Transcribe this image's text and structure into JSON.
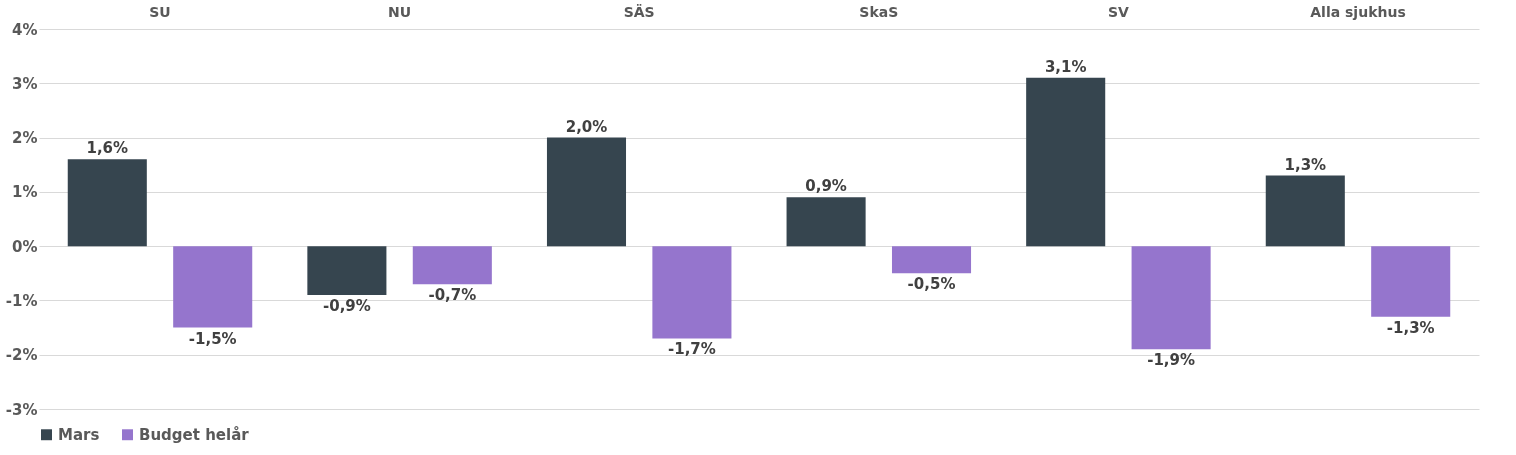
{
  "chart_data": {
    "type": "bar",
    "categories": [
      "SU",
      "NU",
      "SÄS",
      "SkaS",
      "SV",
      "Alla sjukhus"
    ],
    "series": [
      {
        "name": "Mars",
        "color": "#36454f",
        "values": [
          1.6,
          -0.9,
          2.0,
          0.9,
          3.1,
          1.3
        ],
        "value_labels": [
          "1,6%",
          "-0,9%",
          "2,0%",
          "0,9%",
          "3,1%",
          "1,3%"
        ]
      },
      {
        "name": "Budget helår",
        "color": "#9575cd",
        "values": [
          -1.5,
          -0.7,
          -1.7,
          -0.5,
          -1.9,
          -1.3
        ],
        "value_labels": [
          "-1,5%",
          "-0,7%",
          "-1,7%",
          "-0,5%",
          "-1,9%",
          "-1,3%"
        ]
      }
    ],
    "ylim": [
      -3,
      4
    ],
    "yticks": [
      {
        "value": -3,
        "label": "-3%"
      },
      {
        "value": -2,
        "label": "-2%"
      },
      {
        "value": -1,
        "label": "-1%"
      },
      {
        "value": 0,
        "label": "0%"
      },
      {
        "value": 1,
        "label": "1%"
      },
      {
        "value": 2,
        "label": "2%"
      },
      {
        "value": 3,
        "label": "3%"
      },
      {
        "value": 4,
        "label": "4%"
      }
    ],
    "grid": "y",
    "legend": "bottom"
  }
}
